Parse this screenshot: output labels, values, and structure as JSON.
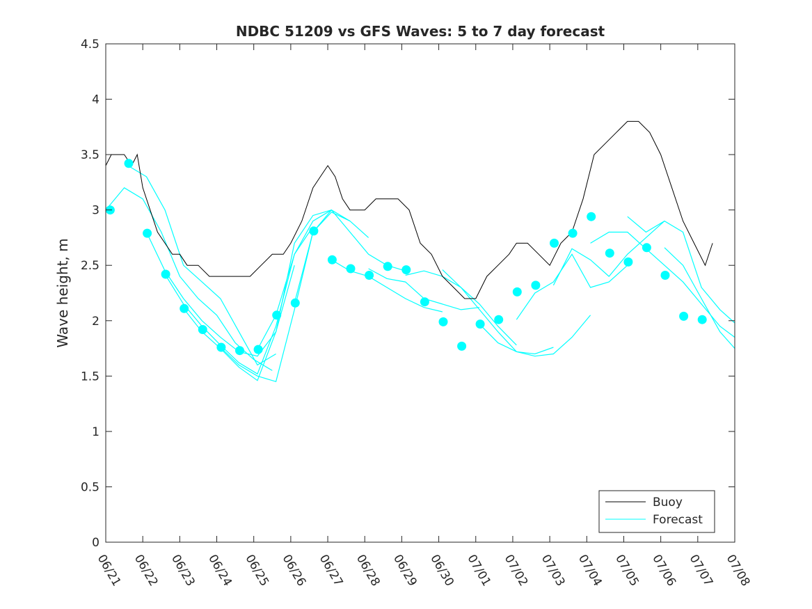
{
  "chart_data": {
    "type": "line",
    "title": "NDBC 51209 vs GFS Waves: 5 to 7 day forecast",
    "xlabel": "",
    "ylabel": "Wave height, m",
    "ylim": [
      0,
      4.5
    ],
    "xlim": [
      "06/21",
      "07/08"
    ],
    "x_ticks": [
      "06/21",
      "06/22",
      "06/23",
      "06/24",
      "06/25",
      "06/26",
      "06/27",
      "06/28",
      "06/29",
      "06/30",
      "07/01",
      "07/02",
      "07/03",
      "07/04",
      "07/05",
      "07/06",
      "07/07",
      "07/08"
    ],
    "y_ticks": [
      "0",
      "0.5",
      "1",
      "1.5",
      "2",
      "2.5",
      "3",
      "3.5",
      "4",
      "4.5"
    ],
    "grid": false,
    "legend": {
      "position": "bottom-right",
      "entries": [
        "Buoy",
        "Forecast"
      ]
    },
    "colors": {
      "buoy": "#000000",
      "forecast": "#00ffff",
      "axis": "#262626"
    },
    "buoy": {
      "name": "Buoy",
      "x_days": [
        0,
        0.15,
        0.3,
        0.5,
        0.7,
        0.85,
        1.0,
        1.2,
        1.4,
        1.6,
        1.8,
        2.0,
        2.2,
        2.5,
        2.8,
        3.0,
        3.3,
        3.6,
        3.9,
        4.2,
        4.5,
        4.8,
        5.0,
        5.3,
        5.6,
        5.8,
        6.0,
        6.2,
        6.4,
        6.6,
        6.8,
        7.0,
        7.3,
        7.6,
        7.9,
        8.2,
        8.5,
        8.8,
        9.1,
        9.4,
        9.7,
        10.0,
        10.3,
        10.6,
        10.9,
        11.1,
        11.4,
        11.7,
        12.0,
        12.3,
        12.6,
        12.9,
        13.2,
        13.5,
        13.8,
        14.1,
        14.4,
        14.7,
        15.0,
        15.3,
        15.6,
        15.9,
        16.2,
        16.4
      ],
      "values": [
        3.4,
        3.5,
        3.5,
        3.5,
        3.4,
        3.5,
        3.2,
        3.0,
        2.8,
        2.7,
        2.6,
        2.6,
        2.5,
        2.5,
        2.4,
        2.4,
        2.4,
        2.4,
        2.4,
        2.5,
        2.6,
        2.6,
        2.7,
        2.9,
        3.2,
        3.3,
        3.4,
        3.3,
        3.1,
        3.0,
        3.0,
        3.0,
        3.1,
        3.1,
        3.1,
        3.0,
        2.7,
        2.6,
        2.4,
        2.3,
        2.2,
        2.2,
        2.4,
        2.5,
        2.6,
        2.7,
        2.7,
        2.6,
        2.5,
        2.7,
        2.8,
        3.1,
        3.5,
        3.6,
        3.7,
        3.8,
        3.8,
        3.7,
        3.5,
        3.2,
        2.9,
        2.7,
        2.5,
        2.7
      ]
    },
    "forecast_markers": {
      "x_days": [
        0.12,
        0.62,
        1.12,
        1.62,
        2.12,
        2.62,
        3.12,
        3.62,
        4.12,
        4.62,
        5.12,
        5.62,
        6.12,
        6.62,
        7.12,
        7.62,
        8.12,
        8.62,
        9.12,
        9.62,
        10.12,
        10.62,
        11.12,
        11.62,
        12.12,
        12.62,
        13.12,
        13.62,
        14.12,
        14.62,
        15.12,
        15.62,
        16.12
      ],
      "values": [
        3.0,
        3.42,
        2.79,
        2.42,
        2.11,
        1.92,
        1.76,
        1.73,
        1.74,
        2.05,
        2.16,
        2.81,
        2.55,
        2.47,
        2.41,
        2.49,
        2.46,
        2.17,
        1.99,
        1.77,
        1.97,
        2.01,
        2.26,
        2.32,
        2.7,
        2.79,
        2.94,
        2.61,
        2.53,
        2.66,
        2.41,
        2.04,
        2.01
      ]
    },
    "forecast_series": [
      {
        "x_days": [
          0.0,
          0.5,
          1.0,
          1.5,
          2.0,
          2.5,
          3.0,
          3.5,
          4.0,
          4.5
        ],
        "values": [
          3.0,
          3.2,
          3.1,
          2.8,
          2.4,
          2.2,
          2.05,
          1.8,
          1.65,
          1.55
        ]
      },
      {
        "x_days": [
          0.6,
          1.1,
          1.6,
          2.1,
          2.6,
          3.1,
          3.6,
          4.1,
          4.6
        ],
        "values": [
          3.4,
          3.3,
          3.0,
          2.5,
          2.35,
          2.2,
          1.9,
          1.6,
          1.7
        ]
      },
      {
        "x_days": [
          1.1,
          1.6,
          2.1,
          2.6,
          3.1,
          3.6,
          4.1,
          4.6,
          5.1
        ],
        "values": [
          2.8,
          2.45,
          2.2,
          2.0,
          1.85,
          1.72,
          1.68,
          1.9,
          2.5
        ]
      },
      {
        "x_days": [
          1.6,
          2.1,
          2.6,
          3.1,
          3.6,
          4.1,
          4.6,
          5.1,
          5.6
        ],
        "values": [
          2.42,
          2.15,
          1.95,
          1.78,
          1.62,
          1.52,
          1.95,
          2.6,
          2.85
        ]
      },
      {
        "x_days": [
          2.1,
          2.6,
          3.1,
          3.6,
          4.1,
          4.6,
          5.1,
          5.6,
          6.1
        ],
        "values": [
          2.11,
          1.9,
          1.75,
          1.58,
          1.46,
          1.9,
          2.7,
          2.95,
          3.0
        ]
      },
      {
        "x_days": [
          3.1,
          3.6,
          4.1,
          4.6,
          5.1,
          5.6,
          6.1,
          6.6
        ],
        "values": [
          1.76,
          1.6,
          1.5,
          1.45,
          2.1,
          2.8,
          2.98,
          2.9
        ]
      },
      {
        "x_days": [
          4.1,
          4.6,
          5.1,
          5.6,
          6.1,
          6.6,
          7.1
        ],
        "values": [
          1.74,
          2.05,
          2.6,
          2.9,
          3.0,
          2.9,
          2.75
        ]
      },
      {
        "x_days": [
          5.1,
          5.6,
          6.1,
          6.6,
          7.1,
          7.6,
          8.1
        ],
        "values": [
          2.16,
          2.8,
          3.0,
          2.8,
          2.6,
          2.5,
          2.45
        ]
      },
      {
        "x_days": [
          6.1,
          6.6,
          7.1,
          7.6,
          8.1,
          8.6,
          9.1
        ],
        "values": [
          2.55,
          2.45,
          2.4,
          2.3,
          2.2,
          2.12,
          2.08
        ]
      },
      {
        "x_days": [
          7.1,
          7.6,
          8.1,
          8.6,
          9.1,
          9.6,
          10.1
        ],
        "values": [
          2.47,
          2.38,
          2.35,
          2.2,
          2.15,
          2.1,
          2.12
        ]
      },
      {
        "x_days": [
          8.1,
          8.6,
          9.1,
          9.6,
          10.1,
          10.6,
          11.1
        ],
        "values": [
          2.41,
          2.45,
          2.4,
          2.3,
          2.15,
          1.95,
          1.78
        ]
      },
      {
        "x_days": [
          9.1,
          9.6,
          10.1,
          10.6,
          11.1,
          11.6,
          12.1
        ],
        "values": [
          2.46,
          2.3,
          2.1,
          1.9,
          1.72,
          1.7,
          1.76
        ]
      },
      {
        "x_days": [
          10.1,
          10.6,
          11.1,
          11.6,
          12.1,
          12.6,
          13.1
        ],
        "values": [
          1.97,
          1.8,
          1.72,
          1.68,
          1.7,
          1.85,
          2.05
        ]
      },
      {
        "x_days": [
          11.1,
          11.6,
          12.1,
          12.6,
          13.1,
          13.6,
          14.1
        ],
        "values": [
          2.01,
          2.25,
          2.35,
          2.6,
          2.3,
          2.35,
          2.5
        ]
      },
      {
        "x_days": [
          12.1,
          12.6,
          13.1,
          13.6,
          14.1,
          14.6,
          15.1
        ],
        "values": [
          2.32,
          2.65,
          2.55,
          2.4,
          2.6,
          2.75,
          2.9
        ]
      },
      {
        "x_days": [
          13.1,
          13.6,
          14.1,
          14.6,
          15.1,
          15.6,
          16.1,
          16.6,
          17.0
        ],
        "values": [
          2.7,
          2.8,
          2.8,
          2.65,
          2.5,
          2.35,
          2.15,
          1.95,
          1.85
        ]
      },
      {
        "x_days": [
          14.1,
          14.6,
          15.1,
          15.6,
          16.1,
          16.6,
          17.0
        ],
        "values": [
          2.94,
          2.8,
          2.9,
          2.8,
          2.3,
          2.1,
          1.98
        ]
      },
      {
        "x_days": [
          15.1,
          15.6,
          16.1,
          16.6,
          17.0
        ],
        "values": [
          2.66,
          2.5,
          2.2,
          1.9,
          1.75
        ]
      }
    ]
  }
}
